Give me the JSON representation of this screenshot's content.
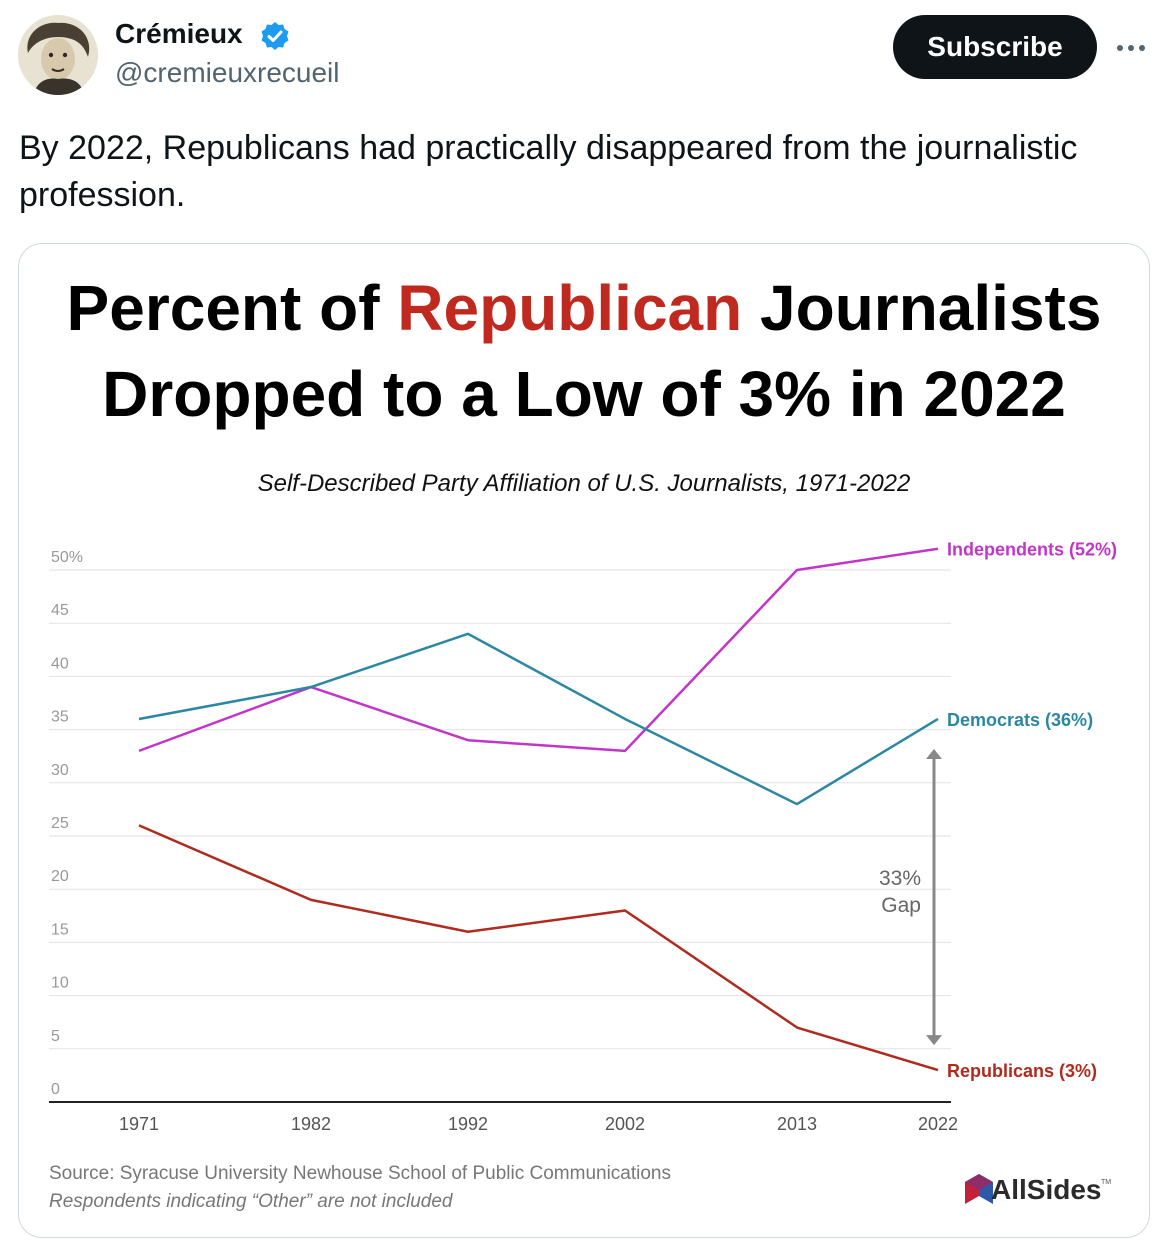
{
  "author": {
    "display_name": "Crémieux",
    "handle": "@cremieuxrecueil",
    "verified": true,
    "verified_color": "#1d9bf0"
  },
  "subscribe_label": "Subscribe",
  "more_icon": "more-horizontal-icon",
  "tweet_text": "By 2022, Republicans had practically disappeared from the journalistic profession.",
  "chart_data": {
    "type": "line",
    "title_parts": [
      {
        "text": "Percent of ",
        "color": "#000000"
      },
      {
        "text": "Republican",
        "color": "#c0291f"
      },
      {
        "text": " Journalists",
        "color": "#000000"
      }
    ],
    "title_line2": "Dropped to a Low of 3% in 2022",
    "subtitle": "Self-Described Party Affiliation of U.S. Journalists, 1971-2022",
    "categories": [
      "1971",
      "1982",
      "1992",
      "2002",
      "2013",
      "2022"
    ],
    "ylim": [
      0,
      50
    ],
    "y_ticks": [
      "0",
      "5",
      "10",
      "15",
      "20",
      "25",
      "30",
      "35",
      "40",
      "45",
      "50%"
    ],
    "grid": true,
    "series": [
      {
        "name": "Independents",
        "label": "Independents (52%)",
        "color": "#c235c9",
        "values": [
          33,
          39,
          34,
          33,
          50,
          52
        ]
      },
      {
        "name": "Democrats",
        "label": "Democrats (36%)",
        "color": "#2b87a3",
        "values": [
          36,
          39,
          44,
          36,
          28,
          36
        ]
      },
      {
        "name": "Republicans",
        "label": "Republicans (3%)",
        "color": "#b02a1e",
        "values": [
          26,
          19,
          16,
          18,
          7,
          3
        ]
      }
    ],
    "annotation": {
      "line1": "33%",
      "line2": "Gap",
      "from": 36,
      "to": 3
    },
    "source": "Source: Syracuse University Newhouse School of Public Communications",
    "note": "Respondents indicating “Other” are not included",
    "logo_text": "AllSides",
    "logo_tm": "TM"
  }
}
